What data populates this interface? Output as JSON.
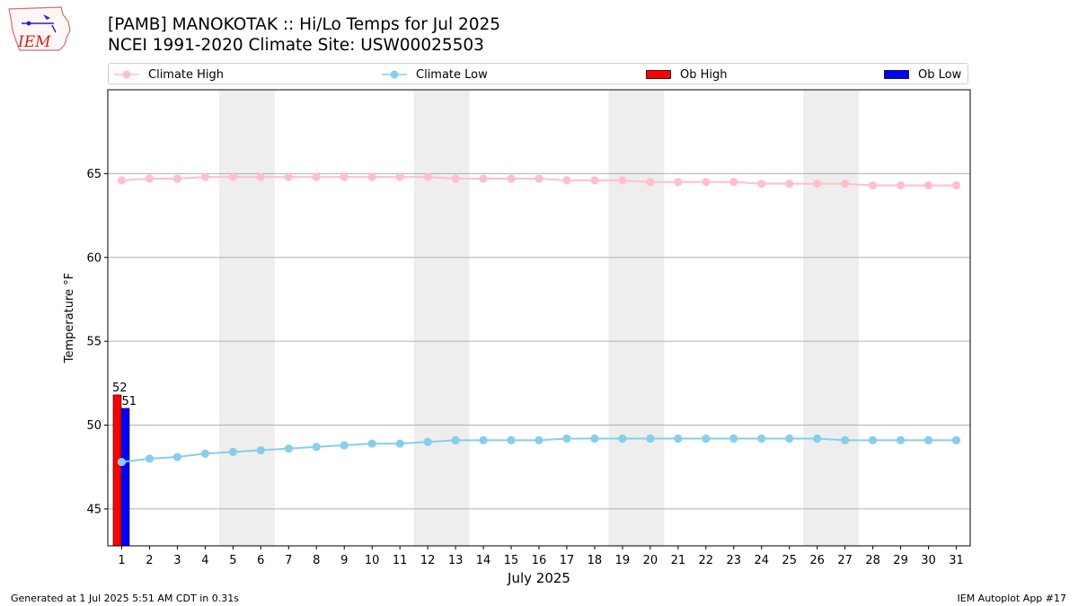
{
  "header": {
    "title": "[PAMB] MANOKOTAK :: Hi/Lo Temps for Jul 2025",
    "subtitle": "NCEI 1991-2020 Climate Site: USW00025503"
  },
  "logo": {
    "text": "IEM",
    "icon": "iowa-state-outline-icon",
    "color": "#cc2222"
  },
  "legend": {
    "placement": "top",
    "items": [
      {
        "label": "Climate High",
        "color": "#ffc0cb",
        "type": "line-marker"
      },
      {
        "label": "Climate Low",
        "color": "#87ceeb",
        "type": "line-marker"
      },
      {
        "label": "Ob High",
        "color": "#ff0000",
        "type": "bar"
      },
      {
        "label": "Ob Low",
        "color": "#0000ff",
        "type": "bar"
      }
    ]
  },
  "footer": {
    "left": "Generated at 1 Jul 2025 5:51 AM CDT in 0.31s",
    "right": "IEM Autoplot App #17"
  },
  "chart_data": {
    "type": "bar",
    "title": "[PAMB] MANOKOTAK :: Hi/Lo Temps for Jul 2025",
    "subtitle": "NCEI 1991-2020 Climate Site: USW00025503",
    "xlabel": "July 2025",
    "ylabel": "Temperature °F",
    "x": [
      1,
      2,
      3,
      4,
      5,
      6,
      7,
      8,
      9,
      10,
      11,
      12,
      13,
      14,
      15,
      16,
      17,
      18,
      19,
      20,
      21,
      22,
      23,
      24,
      25,
      26,
      27,
      28,
      29,
      30,
      31
    ],
    "xlim": [
      0.5,
      31.5
    ],
    "ylim": [
      42.8,
      70.0
    ],
    "yticks": [
      45,
      50,
      55,
      60,
      65
    ],
    "grid": "horizontal",
    "weekend_shading": [
      [
        4.5,
        6.5
      ],
      [
        11.5,
        13.5
      ],
      [
        18.5,
        20.5
      ],
      [
        25.5,
        27.5
      ]
    ],
    "weekend_color": "#eeeeee",
    "series": [
      {
        "name": "Climate High",
        "kind": "line",
        "color": "#ffc0cb",
        "values": [
          64.6,
          64.7,
          64.7,
          64.8,
          64.8,
          64.8,
          64.8,
          64.8,
          64.8,
          64.8,
          64.8,
          64.8,
          64.7,
          64.7,
          64.7,
          64.7,
          64.6,
          64.6,
          64.6,
          64.5,
          64.5,
          64.5,
          64.5,
          64.4,
          64.4,
          64.4,
          64.4,
          64.3,
          64.3,
          64.3,
          64.3
        ]
      },
      {
        "name": "Climate Low",
        "kind": "line",
        "color": "#87ceeb",
        "values": [
          47.8,
          48.0,
          48.1,
          48.3,
          48.4,
          48.5,
          48.6,
          48.7,
          48.8,
          48.9,
          48.9,
          49.0,
          49.1,
          49.1,
          49.1,
          49.1,
          49.2,
          49.2,
          49.2,
          49.2,
          49.2,
          49.2,
          49.2,
          49.2,
          49.2,
          49.2,
          49.1,
          49.1,
          49.1,
          49.1,
          49.1
        ]
      },
      {
        "name": "Ob High",
        "kind": "bar",
        "color": "#ff0000",
        "points": [
          {
            "x": 1,
            "value": 51.8,
            "label": "52"
          }
        ]
      },
      {
        "name": "Ob Low",
        "kind": "bar",
        "color": "#0000ff",
        "points": [
          {
            "x": 1,
            "value": 51.0,
            "label": "51"
          }
        ]
      }
    ]
  }
}
